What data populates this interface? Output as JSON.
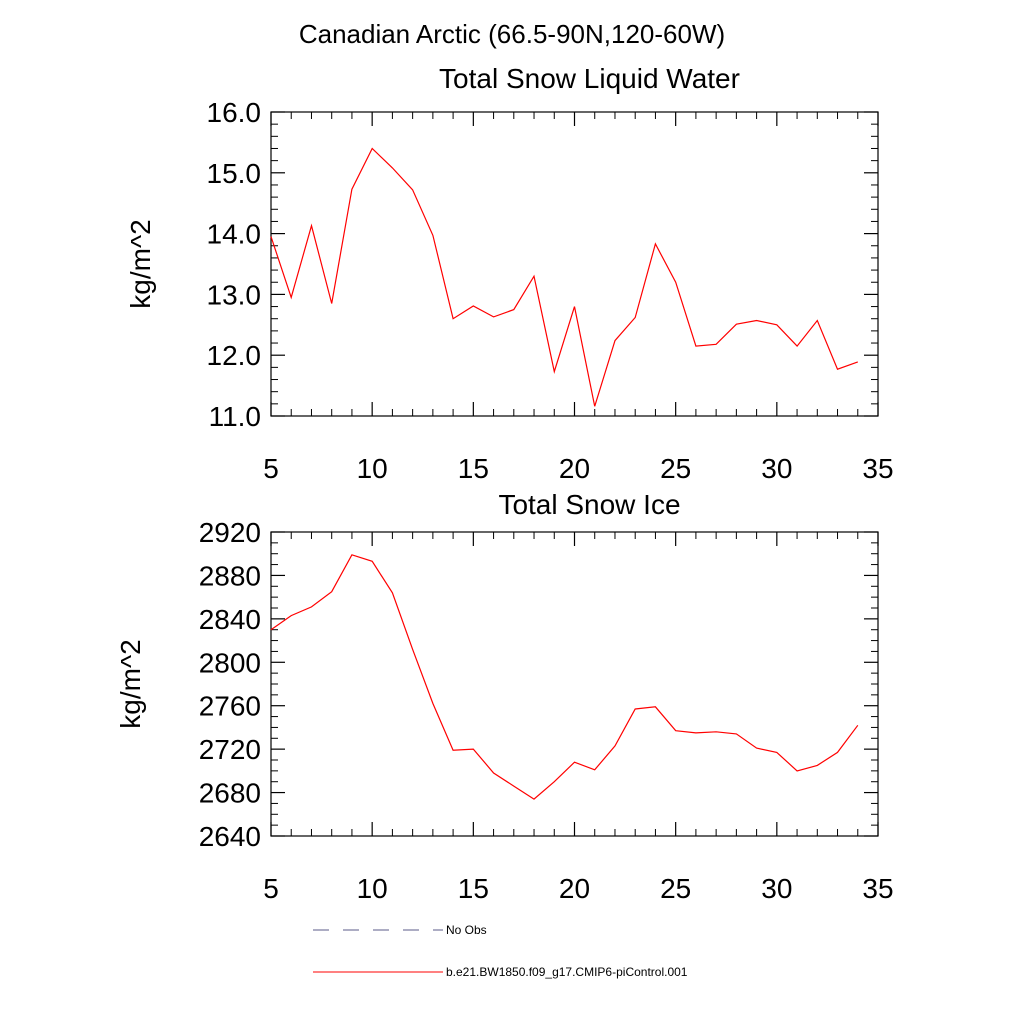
{
  "main_title": "Canadian Arctic (66.5-90N,120-60W)",
  "colors": {
    "model_line": "#ff0000",
    "obs_line": "#5b5b8a",
    "axis": "#000000"
  },
  "chart_data": [
    {
      "type": "line",
      "title": "Total Snow Liquid Water",
      "xlabel": "",
      "ylabel": "kg/m^2",
      "xlim": [
        5,
        35
      ],
      "ylim": [
        11.0,
        16.0
      ],
      "x_ticks": [
        5,
        10,
        15,
        20,
        25,
        30,
        35
      ],
      "x_tick_labels": [
        "5",
        "10",
        "15",
        "20",
        "25",
        "30",
        "35"
      ],
      "y_ticks": [
        11.0,
        12.0,
        13.0,
        14.0,
        15.0,
        16.0
      ],
      "y_tick_labels": [
        "11.0",
        "12.0",
        "13.0",
        "14.0",
        "15.0",
        "16.0"
      ],
      "series": [
        {
          "name": "b.e21.BW1850.f09_g17.CMIP6-piControl.001",
          "x": [
            5,
            6,
            7,
            8,
            9,
            10,
            11,
            12,
            13,
            14,
            15,
            16,
            17,
            18,
            19,
            20,
            21,
            22,
            23,
            24,
            25,
            26,
            27,
            28,
            29,
            30,
            31,
            32,
            33,
            34
          ],
          "values": [
            13.95,
            12.95,
            14.13,
            12.85,
            14.73,
            15.4,
            15.08,
            14.72,
            13.97,
            12.6,
            12.81,
            12.63,
            12.75,
            13.3,
            11.73,
            12.8,
            11.16,
            12.24,
            12.62,
            13.83,
            13.2,
            12.15,
            12.18,
            12.51,
            12.57,
            12.5,
            12.15,
            12.57,
            11.77,
            11.89
          ]
        }
      ]
    },
    {
      "type": "line",
      "title": "Total Snow Ice",
      "xlabel": "",
      "ylabel": "kg/m^2",
      "xlim": [
        5,
        35
      ],
      "ylim": [
        2640,
        2920
      ],
      "x_ticks": [
        5,
        10,
        15,
        20,
        25,
        30,
        35
      ],
      "x_tick_labels": [
        "5",
        "10",
        "15",
        "20",
        "25",
        "30",
        "35"
      ],
      "y_ticks": [
        2640,
        2680,
        2720,
        2760,
        2800,
        2840,
        2880,
        2920
      ],
      "y_tick_labels": [
        "2640",
        "2680",
        "2720",
        "2760",
        "2800",
        "2840",
        "2880",
        "2920"
      ],
      "series": [
        {
          "name": "b.e21.BW1850.f09_g17.CMIP6-piControl.001",
          "x": [
            5,
            6,
            7,
            8,
            9,
            10,
            11,
            12,
            13,
            14,
            15,
            16,
            17,
            18,
            19,
            20,
            21,
            22,
            23,
            24,
            25,
            26,
            27,
            28,
            29,
            30,
            31,
            32,
            33,
            34
          ],
          "values": [
            2830,
            2843,
            2851,
            2865,
            2899,
            2893,
            2864,
            2812,
            2762,
            2719,
            2720,
            2698,
            2686,
            2674,
            2690,
            2708,
            2701,
            2723,
            2757,
            2759,
            2737,
            2735,
            2736,
            2734,
            2721,
            2717,
            2700,
            2705,
            2717,
            2742
          ]
        }
      ]
    }
  ],
  "legend": {
    "items": [
      {
        "label": "No Obs",
        "style": "dashed"
      },
      {
        "label": "b.e21.BW1850.f09_g17.CMIP6-piControl.001",
        "style": "solid"
      }
    ]
  }
}
